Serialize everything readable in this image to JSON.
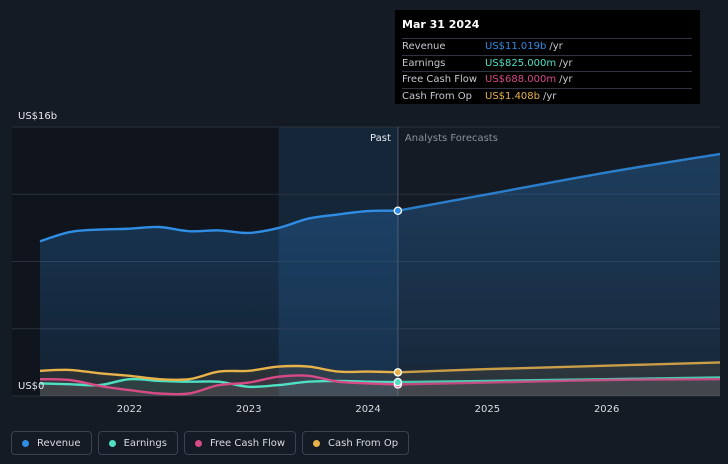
{
  "colors": {
    "background": "#151b24",
    "revenue": "#2f8de4",
    "earnings": "#4fe0c4",
    "free_cash_flow": "#d64a86",
    "cash_from_op": "#e8b24a",
    "grid": "#2a313c",
    "text": "#d8dce2",
    "muted": "#8a919c"
  },
  "tooltip": {
    "date": "Mar 31 2024",
    "rows": [
      {
        "label": "Revenue",
        "value": "US$11.019b",
        "unit": "/yr",
        "color": "#2f8de4"
      },
      {
        "label": "Earnings",
        "value": "US$825.000m",
        "unit": "/yr",
        "color": "#4fe0c4"
      },
      {
        "label": "Free Cash Flow",
        "value": "US$688.000m",
        "unit": "/yr",
        "color": "#d64a86"
      },
      {
        "label": "Cash From Op",
        "value": "US$1.408b",
        "unit": "/yr",
        "color": "#e8b24a"
      }
    ]
  },
  "legend": [
    {
      "label": "Revenue",
      "color": "#2f8de4"
    },
    {
      "label": "Earnings",
      "color": "#4fe0c4"
    },
    {
      "label": "Free Cash Flow",
      "color": "#d64a86"
    },
    {
      "label": "Cash From Op",
      "color": "#e8b24a"
    }
  ],
  "chart_data": {
    "type": "area",
    "y_top_label": "US$16b",
    "y_bottom_label": "US$0",
    "ylim": [
      0,
      16
    ],
    "xlim": [
      2021.25,
      2026.95
    ],
    "past_label": "Past",
    "forecast_label": "Analysts Forecasts",
    "past_end": 2024.25,
    "past_highlight_start": 2023.25,
    "x_ticks": [
      {
        "value": 2022,
        "label": "2022"
      },
      {
        "value": 2023,
        "label": "2023"
      },
      {
        "value": 2024,
        "label": "2024"
      },
      {
        "value": 2025,
        "label": "2025"
      },
      {
        "value": 2026,
        "label": "2026"
      }
    ],
    "series": [
      {
        "name": "Revenue",
        "color": "#2f8de4",
        "x": [
          2021.25,
          2021.5,
          2021.75,
          2022.0,
          2022.25,
          2022.5,
          2022.75,
          2023.0,
          2023.25,
          2023.5,
          2023.75,
          2024.0,
          2024.25
        ],
        "y": [
          9.2,
          9.75,
          9.9,
          9.95,
          10.05,
          9.8,
          9.85,
          9.7,
          10.0,
          10.55,
          10.8,
          11.0,
          11.019
        ],
        "forecast_x": [
          2024.25,
          2025.0,
          2026.0,
          2026.95
        ],
        "forecast_y": [
          11.019,
          12.0,
          13.3,
          14.4
        ]
      },
      {
        "name": "Earnings",
        "color": "#4fe0c4",
        "x": [
          2021.25,
          2021.5,
          2021.75,
          2022.0,
          2022.25,
          2022.5,
          2022.75,
          2023.0,
          2023.25,
          2023.5,
          2023.75,
          2024.0,
          2024.25
        ],
        "y": [
          0.75,
          0.7,
          0.65,
          1.0,
          0.9,
          0.85,
          0.85,
          0.55,
          0.65,
          0.85,
          0.9,
          0.85,
          0.825
        ],
        "forecast_x": [
          2024.25,
          2025.0,
          2026.0,
          2026.95
        ],
        "forecast_y": [
          0.825,
          0.9,
          1.0,
          1.1
        ]
      },
      {
        "name": "Free Cash Flow",
        "color": "#d64a86",
        "x": [
          2021.25,
          2021.5,
          2021.75,
          2022.0,
          2022.25,
          2022.5,
          2022.75,
          2023.0,
          2023.25,
          2023.5,
          2023.75,
          2024.0,
          2024.25
        ],
        "y": [
          1.0,
          0.95,
          0.6,
          0.35,
          0.15,
          0.15,
          0.65,
          0.8,
          1.15,
          1.2,
          0.85,
          0.75,
          0.688
        ],
        "forecast_x": [
          2024.25,
          2025.0,
          2026.0,
          2026.95
        ],
        "forecast_y": [
          0.688,
          0.8,
          0.95,
          1.0
        ]
      },
      {
        "name": "Cash From Op",
        "color": "#e8b24a",
        "x": [
          2021.25,
          2021.5,
          2021.75,
          2022.0,
          2022.25,
          2022.5,
          2022.75,
          2023.0,
          2023.25,
          2023.5,
          2023.75,
          2024.0,
          2024.25
        ],
        "y": [
          1.5,
          1.55,
          1.35,
          1.2,
          1.0,
          1.0,
          1.45,
          1.5,
          1.75,
          1.75,
          1.45,
          1.45,
          1.408
        ],
        "forecast_x": [
          2024.25,
          2025.0,
          2026.0,
          2026.95
        ],
        "forecast_y": [
          1.408,
          1.6,
          1.8,
          2.0
        ]
      }
    ]
  }
}
